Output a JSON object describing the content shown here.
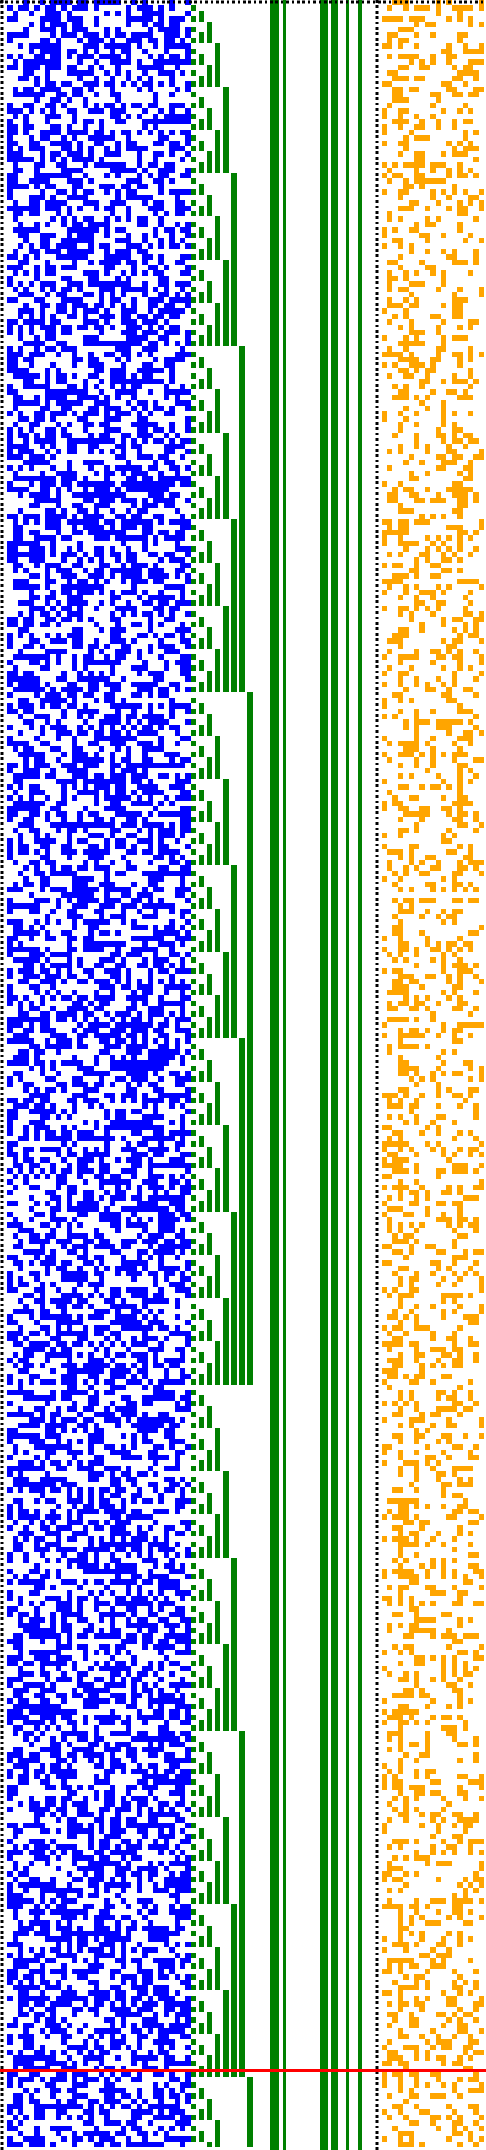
{
  "visualization": {
    "kind": "pixel-pattern-strip",
    "colors": {
      "background": "#ffffff",
      "dotted_border": "#000000",
      "blue_block": "#0000ff",
      "green_counter": "#008000",
      "orange_block": "#ffa500",
      "marker_line": "#ff0000"
    },
    "blocks": [
      {
        "name": "blue-noise-block",
        "color": "blue_block",
        "density": 0.5
      },
      {
        "name": "green-binary-counter",
        "color": "green_counter",
        "bits": 8
      },
      {
        "name": "green-stripes",
        "color": "green_counter",
        "stripe_count": 6
      },
      {
        "name": "orange-noise-block",
        "color": "orange_block",
        "density": 0.38
      }
    ],
    "marker": {
      "name": "red-horizontal-marker",
      "color": "marker_line",
      "row_fraction": 0.963
    }
  }
}
